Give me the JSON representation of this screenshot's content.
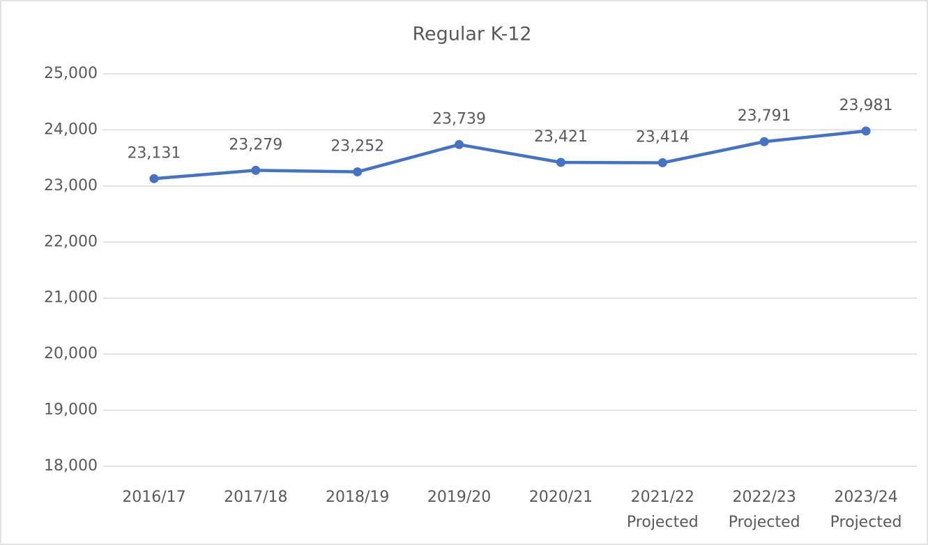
{
  "chart_data": {
    "type": "line",
    "title": "Regular K-12",
    "categories": [
      "2016/17",
      "2017/18",
      "2018/19",
      "2019/20",
      "2020/21",
      "2021/22 Projected",
      "2022/23 Projected",
      "2023/24 Projected"
    ],
    "series": [
      {
        "name": "Regular K-12",
        "color": "#4472c4",
        "values": [
          23131,
          23279,
          23252,
          23739,
          23421,
          23414,
          23791,
          23981
        ],
        "value_labels": [
          "23,131",
          "23,279",
          "23,252",
          "23,739",
          "23,421",
          "23,414",
          "23,791",
          "23,981"
        ]
      }
    ],
    "ylim": [
      18000,
      25000
    ],
    "yticks": [
      {
        "value": 18000,
        "label": "18,000"
      },
      {
        "value": 19000,
        "label": "19,000"
      },
      {
        "value": 20000,
        "label": "20,000"
      },
      {
        "value": 21000,
        "label": "21,000"
      },
      {
        "value": 22000,
        "label": "22,000"
      },
      {
        "value": 23000,
        "label": "23,000"
      },
      {
        "value": 24000,
        "label": "24,000"
      },
      {
        "value": 25000,
        "label": "25,000"
      }
    ],
    "grid": true
  }
}
